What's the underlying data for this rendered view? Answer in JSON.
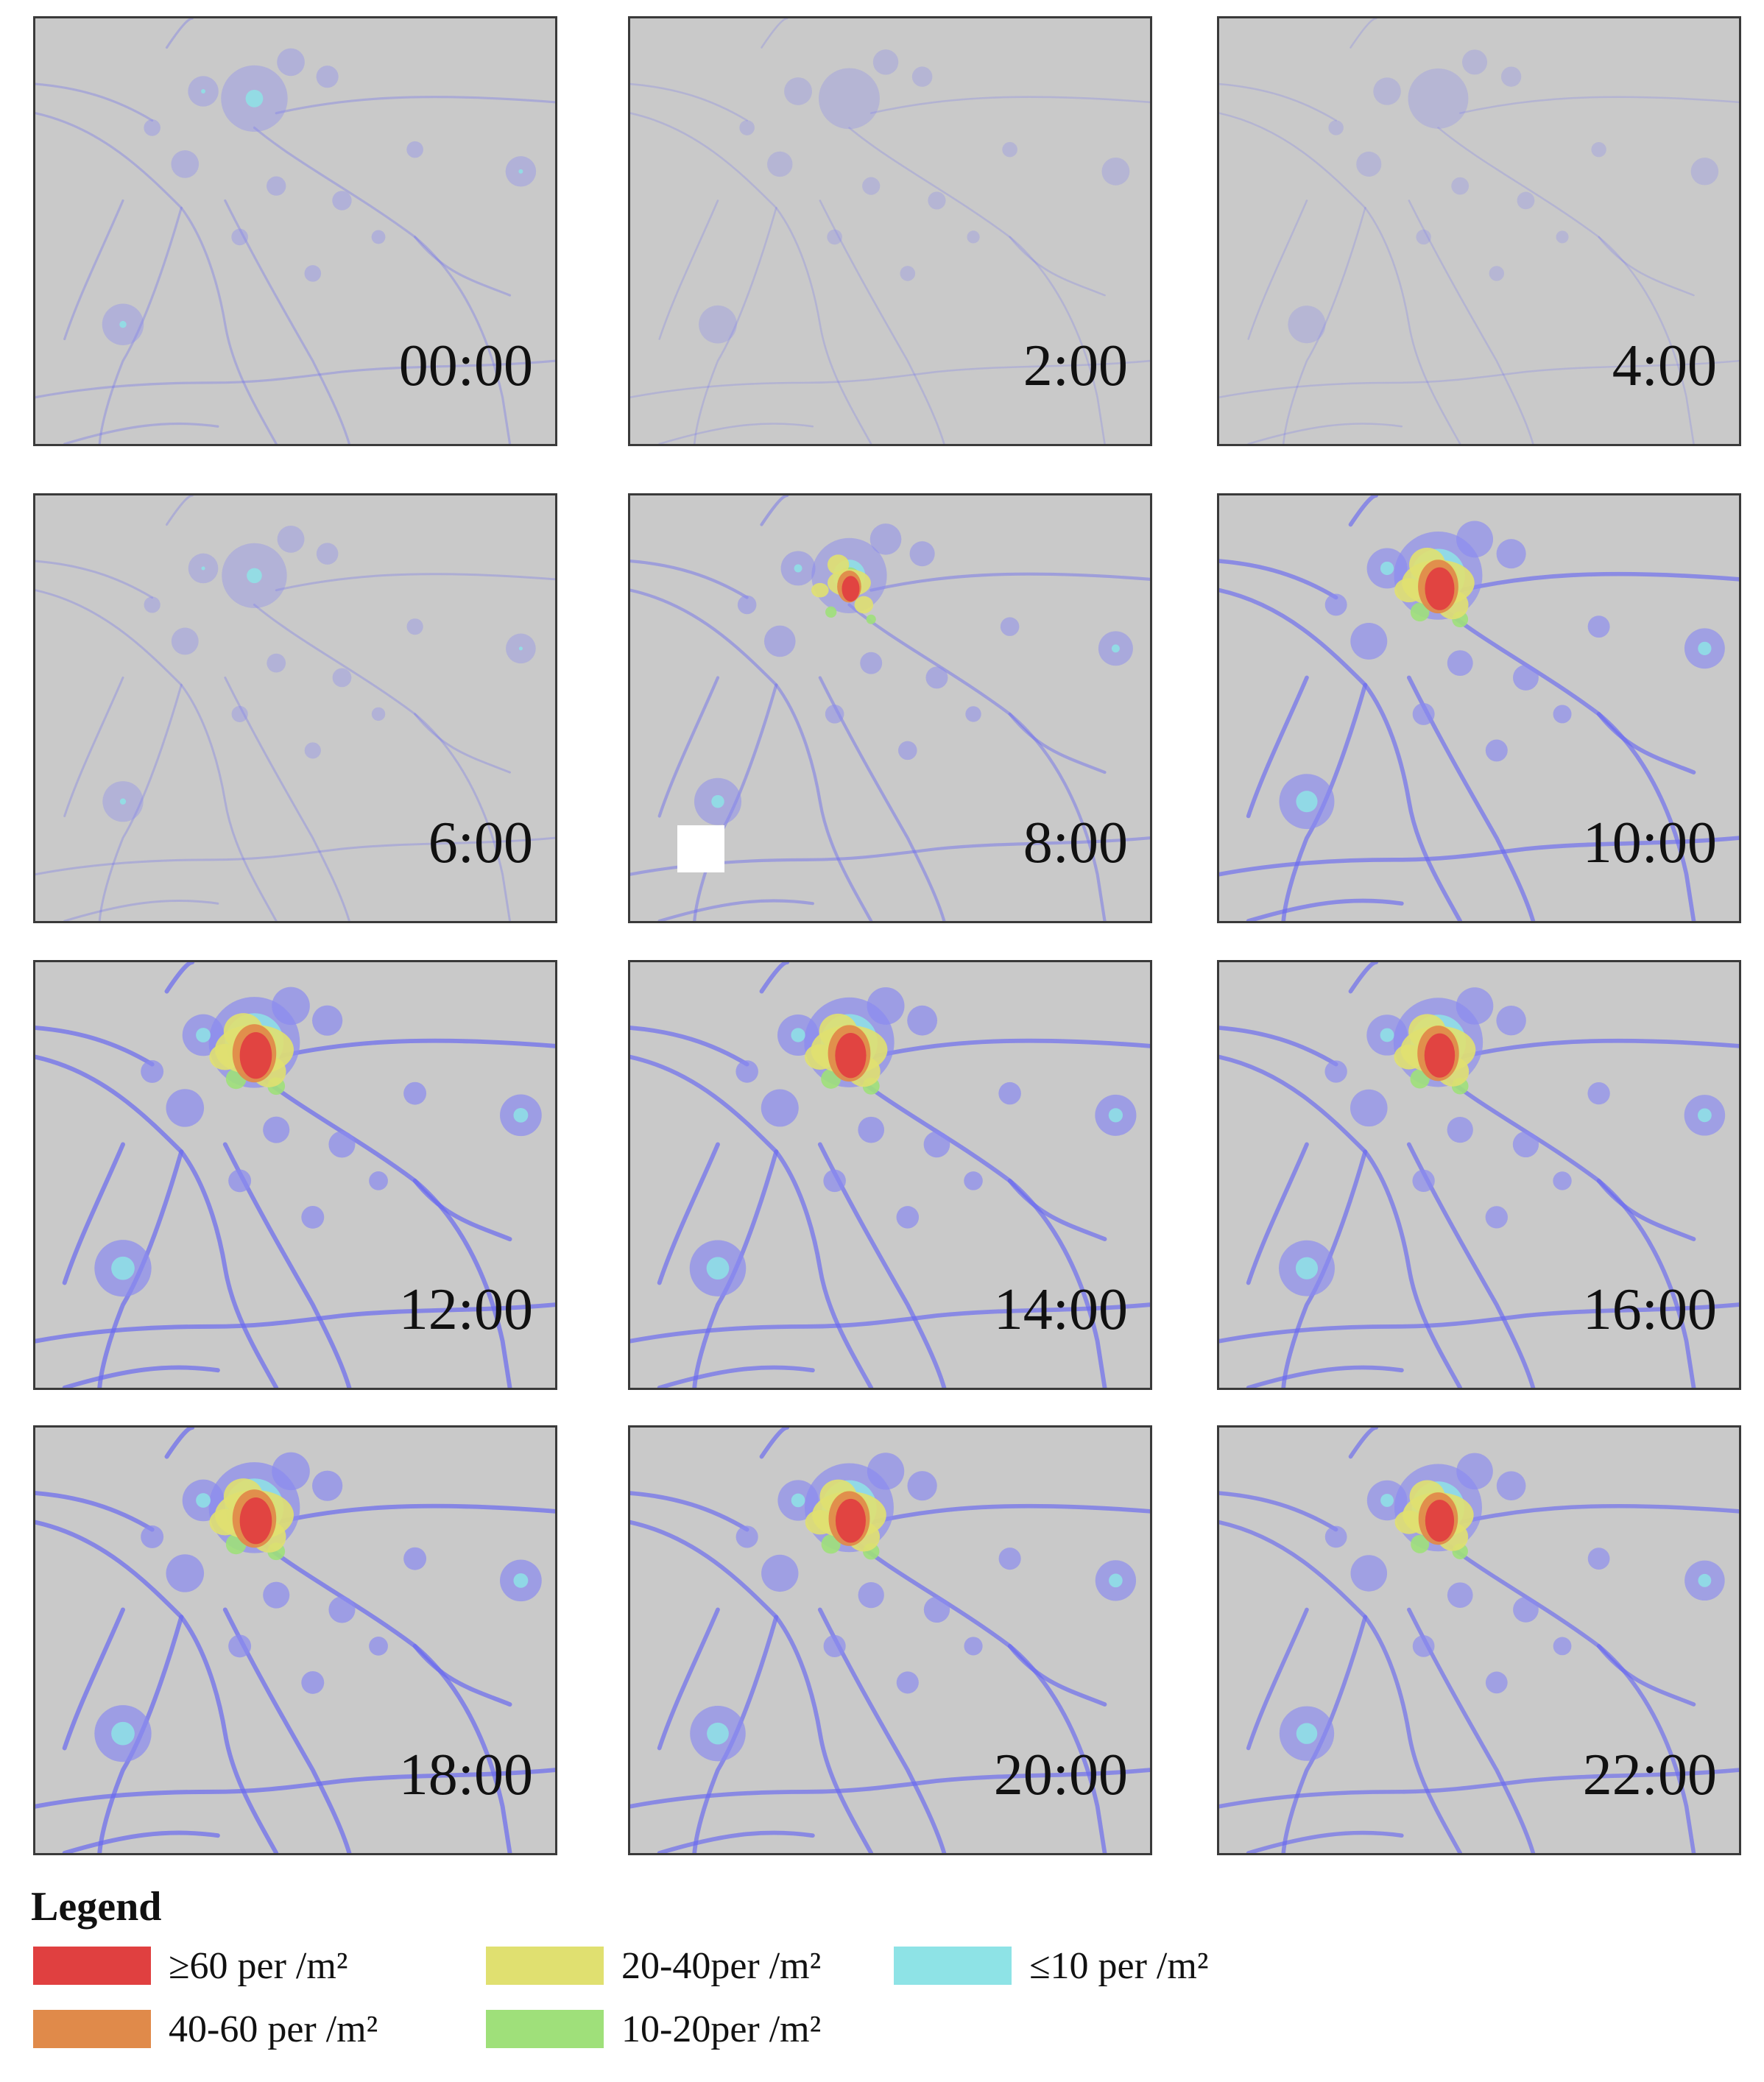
{
  "panels": [
    {
      "time": "00:00",
      "level": 0.3
    },
    {
      "time": "2:00",
      "level": 0.14
    },
    {
      "time": "4:00",
      "level": 0.12
    },
    {
      "time": "6:00",
      "level": 0.26
    },
    {
      "time": "8:00",
      "level": 0.55
    },
    {
      "time": "10:00",
      "level": 0.92
    },
    {
      "time": "12:00",
      "level": 1.0
    },
    {
      "time": "14:00",
      "level": 0.97
    },
    {
      "time": "16:00",
      "level": 0.95
    },
    {
      "time": "18:00",
      "level": 1.0
    },
    {
      "time": "20:00",
      "level": 0.94
    },
    {
      "time": "22:00",
      "level": 0.9
    }
  ],
  "legend": {
    "title": "Legend",
    "items": [
      {
        "label": "≥60 per /m²",
        "color": "#e04040"
      },
      {
        "label": "40-60 per /m²",
        "color": "#e08a4a"
      },
      {
        "label": "20-40per /m²",
        "color": "#e0e070"
      },
      {
        "label": "10-20per /m²",
        "color": "#9fe07a"
      },
      {
        "label": "≤10 per /m²",
        "color": "#8ee3e6"
      }
    ]
  },
  "colors": {
    "background": "#c9c9c9",
    "roads": "#6a6af0",
    "low_density": "#8a8af0"
  }
}
